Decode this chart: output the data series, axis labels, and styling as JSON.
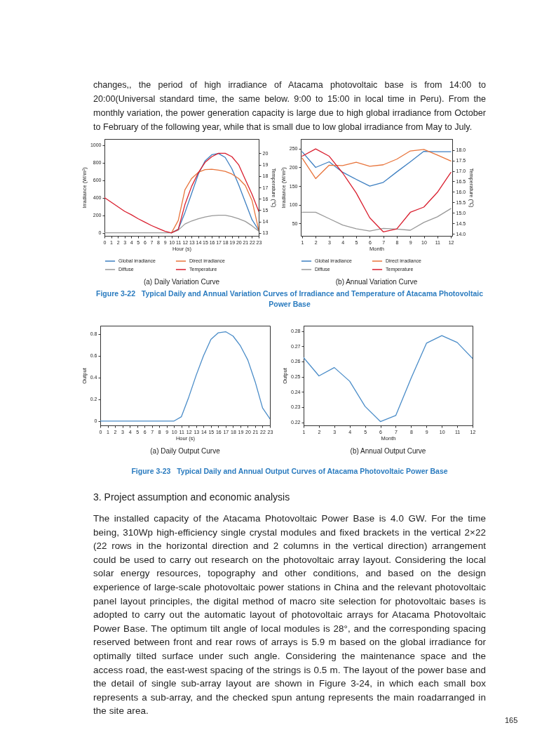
{
  "chart_data": [
    {
      "type": "line",
      "title": "(a) Daily Variation Curve",
      "xlabel": "Hour (s)",
      "ylabel": "Irradiance (W/m²)",
      "y2label": "Temperature (℃)",
      "legend": "bottom",
      "annotations": [
        "changes,, the period of high irradiance of Atacama photovoltaic base is from 14:00 to 20:00(Universal standard time, the same below. 9:00 to 15:00 in local time in Peru). From the monthly variation, the power generation capacity is large due to high global irradiance from October to February of the following year, while that is small due to low global irradiance from May to July."
      ],
      "x": [
        0,
        1,
        2,
        3,
        4,
        5,
        6,
        7,
        8,
        9,
        10,
        11,
        12,
        13,
        14,
        15,
        16,
        17,
        18,
        19,
        20,
        21,
        22,
        23
      ],
      "xlim": [
        0,
        23
      ],
      "xticks": [
        0,
        1,
        2,
        3,
        4,
        5,
        6,
        7,
        8,
        9,
        10,
        11,
        12,
        13,
        14,
        15,
        16,
        17,
        18,
        19,
        20,
        21,
        22,
        23
      ],
      "ylim": [
        -35,
        1070
      ],
      "yticks": [
        0,
        200,
        400,
        600,
        800,
        1000
      ],
      "y2lim": [
        12.74,
        21.26
      ],
      "y2ticks": [
        13,
        14,
        15,
        16,
        17,
        18,
        19,
        20
      ],
      "series": [
        {
          "name": "Global irradiance",
          "color": "#3d7fc1",
          "values": [
            null,
            null,
            null,
            null,
            null,
            null,
            null,
            null,
            null,
            null,
            0,
            40,
            230,
            450,
            670,
            820,
            890,
            905,
            860,
            730,
            550,
            350,
            150,
            30
          ]
        },
        {
          "name": "Direct irradiance",
          "color": "#e8743b",
          "values": [
            null,
            null,
            null,
            null,
            null,
            null,
            null,
            null,
            null,
            null,
            0,
            140,
            490,
            620,
            690,
            720,
            725,
            715,
            700,
            670,
            620,
            540,
            370,
            30
          ]
        },
        {
          "name": "Diffuse",
          "color": "#999999",
          "values": [
            0,
            0,
            0,
            0,
            0,
            0,
            0,
            0,
            0,
            0,
            0,
            30,
            100,
            135,
            160,
            180,
            195,
            200,
            200,
            185,
            160,
            130,
            80,
            20
          ]
        },
        {
          "name": "Temperature",
          "color": "#d91e2e",
          "axis": "y2",
          "values": [
            16.1,
            15.7,
            15.3,
            14.9,
            14.6,
            14.25,
            13.95,
            13.65,
            13.4,
            13.15,
            13.0,
            13.3,
            15.5,
            17.1,
            18.3,
            19.2,
            19.7,
            20.0,
            20.0,
            19.7,
            19.0,
            17.7,
            16.4,
            14.9
          ]
        }
      ]
    },
    {
      "type": "line",
      "title": "(b) Annual Variation Curve",
      "xlabel": "Month",
      "ylabel": "Irradiance (W/m²)",
      "y2label": "Temperature (℃)",
      "legend": "bottom",
      "annotations": [
        "Figure 3-22   Typical Daily and Annual Variation Curves of Irradiance and Temperature of Atacama Photovoltaic Power Base"
      ],
      "x": [
        1,
        2,
        3,
        4,
        5,
        6,
        7,
        8,
        9,
        10,
        11,
        12
      ],
      "xlim": [
        0.9,
        12.1
      ],
      "xticks": [
        1,
        2,
        3,
        4,
        5,
        6,
        7,
        8,
        9,
        10,
        11,
        12
      ],
      "ylim": [
        17,
        276
      ],
      "yticks": [
        50,
        100,
        150,
        200,
        250
      ],
      "y2lim": [
        13.91,
        18.52
      ],
      "y2ticks": [
        {
          "value": 14,
          "label": "14.0"
        },
        14.5,
        {
          "value": 15,
          "label": "15.0"
        },
        15.5,
        {
          "value": 16,
          "label": "16.0"
        },
        16.5,
        {
          "value": 17,
          "label": "17.0"
        },
        17.5,
        {
          "value": 18,
          "label": "18.0"
        }
      ],
      "series": [
        {
          "name": "Global irradiance",
          "color": "#3d7fc1",
          "values": [
            242,
            200,
            215,
            187,
            168,
            150,
            160,
            188,
            215,
            243,
            242,
            242
          ]
        },
        {
          "name": "Direct irradiance",
          "color": "#e8743b",
          "values": [
            225,
            170,
            206,
            205,
            214,
            203,
            207,
            222,
            244,
            248,
            233,
            217
          ]
        },
        {
          "name": "Diffuse",
          "color": "#999999",
          "values": [
            80,
            80,
            63,
            46,
            36,
            30,
            37,
            35,
            32,
            53,
            68,
            90
          ]
        },
        {
          "name": "Temperature",
          "color": "#d91e2e",
          "axis": "y2",
          "values": [
            17.7,
            18.05,
            17.7,
            16.9,
            15.95,
            14.77,
            14.1,
            14.24,
            15.03,
            15.28,
            15.98,
            16.93
          ]
        }
      ]
    },
    {
      "type": "line",
      "title": "(a) Daily Output Curve",
      "xlabel": "Hour (s)",
      "ylabel": "Output",
      "x": [
        0,
        1,
        2,
        3,
        4,
        5,
        6,
        7,
        8,
        9,
        10,
        11,
        12,
        13,
        14,
        15,
        16,
        17,
        18,
        19,
        20,
        21,
        22,
        23
      ],
      "xlim": [
        0,
        23
      ],
      "xticks": [
        0,
        1,
        2,
        3,
        4,
        5,
        6,
        7,
        8,
        9,
        10,
        11,
        12,
        13,
        14,
        15,
        16,
        17,
        18,
        19,
        20,
        21,
        22,
        23
      ],
      "ylim": [
        -0.04,
        0.875
      ],
      "yticks": [
        0,
        0.2,
        0.4,
        0.6,
        0.8
      ],
      "series": [
        {
          "color": "#4a8cc8",
          "values": [
            0,
            0,
            0,
            0,
            0,
            0,
            0,
            0,
            0,
            0,
            0,
            0.04,
            0.22,
            0.42,
            0.6,
            0.75,
            0.81,
            0.82,
            0.78,
            0.69,
            0.56,
            0.36,
            0.12,
            0.02
          ]
        }
      ]
    },
    {
      "type": "line",
      "title": "(b) Annual Output Curve",
      "xlabel": "Month",
      "ylabel": "Output",
      "annotations": [
        "Figure 3-23   Typical Daily and Annual Output Curves of Atacama Photovoltaic Power Base",
        "3. Project assumption and economic analysis",
        "The installed capacity of the Atacama Photovoltaic Power Base is 4.0 GW. For the time being, 310Wp high-efficiency single crystal modules and fixed brackets in the vertical 2×22 (22 rows in the horizontal direction and 2 columns in the vertical direction) arrangement could be used to carry out research on the photovoltaic array layout. Considering the local solar energy resources, topography and other conditions, and based on the design experience of large-scale photovoltaic power stations in China and the relevant photovoltaic panel layout principles, the digital method of macro site selection for photovoltaic bases is adopted to carry out the automatic layout of photovoltaic arrays for Atacama Photovoltaic Power Base. The optimum tilt angle of local modules is 28°, and the corresponding spacing reserved between front and rear rows of arrays is 5.9 m based on the global irradiance for optimally tilted surface under such angle. Considering the maintenance space and the access road, the east-west spacing of the strings is 0.5 m. The layout of the power base and the detail of single sub-array layout are shown in Figure 3-24, in which each small box represents a sub-array, and the checked spun antung represents the main roadarranged in the site area.",
        "165"
      ],
      "x": [
        1,
        2,
        3,
        4,
        5,
        6,
        7,
        8,
        9,
        10,
        11,
        12
      ],
      "xlim": [
        1,
        12
      ],
      "xticks": [
        1,
        2,
        3,
        4,
        5,
        6,
        7,
        8,
        9,
        10,
        11,
        12
      ],
      "ylim": [
        0.218,
        0.2835
      ],
      "yticks": [
        0.22,
        0.23,
        0.24,
        0.25,
        0.26,
        0.27,
        0.28
      ],
      "series": [
        {
          "color": "#4a8cc8",
          "values": [
            0.2625,
            0.2505,
            0.256,
            0.247,
            0.2305,
            0.2205,
            0.2245,
            0.249,
            0.272,
            0.277,
            0.2725,
            0.262
          ]
        }
      ]
    }
  ]
}
